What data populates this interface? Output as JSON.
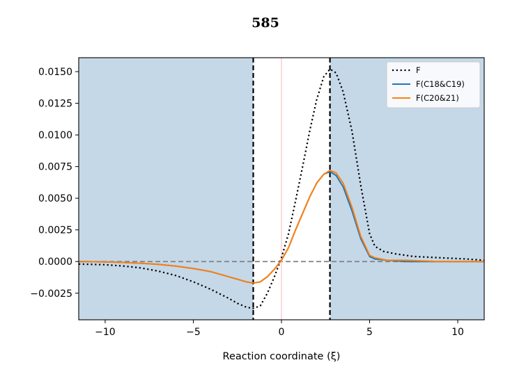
{
  "chart_data": {
    "type": "line",
    "title": "585",
    "xlabel": "Reaction coordinate (ξ)",
    "ylabel": "",
    "xlim": [
      -11.5,
      11.5
    ],
    "ylim": [
      -0.0046,
      0.0161
    ],
    "xticks": [
      -10,
      -5,
      0,
      5,
      10
    ],
    "xtick_labels": [
      "−10",
      "−5",
      "0",
      "5",
      "10"
    ],
    "yticks": [
      -0.0025,
      0.0,
      0.0025,
      0.005,
      0.0075,
      0.01,
      0.0125,
      0.015
    ],
    "ytick_labels": [
      "−0.0025",
      "0.0000",
      "0.0025",
      "0.0050",
      "0.0075",
      "0.0100",
      "0.0125",
      "0.0150"
    ],
    "grid": false,
    "legend_position": "top-right",
    "shaded_regions": [
      {
        "x0": -11.5,
        "x1": -1.6,
        "color": "#c5d8e8"
      },
      {
        "x0": 2.75,
        "x1": 11.5,
        "color": "#c5d8e8"
      }
    ],
    "vertical_lines": [
      {
        "x": -1.6,
        "style": "dashed",
        "color": "#000000"
      },
      {
        "x": 2.75,
        "style": "dashed",
        "color": "#000000"
      },
      {
        "x": 0,
        "style": "solid",
        "color": "#f7c6cc"
      }
    ],
    "horizontal_lines": [
      {
        "y": 0,
        "style": "dashed",
        "color": "#808080"
      }
    ],
    "series": [
      {
        "name": "F",
        "color": "#000000",
        "style": "dotted",
        "x": [
          -11.5,
          -10,
          -9,
          -8,
          -7,
          -6,
          -5,
          -4,
          -3,
          -2.5,
          -2,
          -1.6,
          -1.2,
          -0.8,
          -0.4,
          0,
          0.4,
          0.8,
          1.2,
          1.6,
          2.0,
          2.4,
          2.75,
          3.1,
          3.5,
          4.0,
          4.5,
          5.0,
          5.3,
          5.8,
          6.5,
          7.5,
          9,
          10.5,
          11.5
        ],
        "y": [
          -0.0002,
          -0.00025,
          -0.00035,
          -0.0005,
          -0.00075,
          -0.0011,
          -0.0016,
          -0.0022,
          -0.0029,
          -0.0033,
          -0.0036,
          -0.0037,
          -0.0035,
          -0.0025,
          -0.0012,
          0.0003,
          0.0022,
          0.0048,
          0.0075,
          0.0103,
          0.0128,
          0.0146,
          0.0152,
          0.0149,
          0.0134,
          0.0103,
          0.006,
          0.0022,
          0.0012,
          0.0008,
          0.0006,
          0.0004,
          0.0003,
          0.0002,
          0.0001
        ]
      },
      {
        "name": "F(C18&C19)",
        "color": "#1f77b4",
        "style": "solid",
        "x": [
          -11.5,
          -10,
          -9,
          -8,
          -7,
          -6,
          -5,
          -4,
          -3,
          -2.5,
          -2,
          -1.6,
          -1.2,
          -0.8,
          -0.4,
          0,
          0.4,
          0.8,
          1.2,
          1.6,
          2.0,
          2.4,
          2.75,
          3.1,
          3.5,
          4.0,
          4.5,
          5.0,
          5.3,
          6,
          7,
          9,
          11.5
        ],
        "y": [
          0.0,
          -3e-05,
          -7e-05,
          -0.00013,
          -0.00022,
          -0.00036,
          -0.00055,
          -0.0008,
          -0.0012,
          -0.0014,
          -0.0016,
          -0.0017,
          -0.0016,
          -0.0012,
          -0.0006,
          0.0001,
          0.0011,
          0.0025,
          0.0038,
          0.0051,
          0.0062,
          0.0069,
          0.0071,
          0.0068,
          0.0059,
          0.004,
          0.0018,
          0.0004,
          0.0002,
          0.0001,
          0.0,
          0.0,
          0.0
        ]
      },
      {
        "name": "F(C20&21)",
        "color": "#ff7f0e",
        "style": "solid",
        "x": [
          -11.5,
          -10,
          -9,
          -8,
          -7,
          -6,
          -5,
          -4,
          -3,
          -2.5,
          -2,
          -1.6,
          -1.2,
          -0.8,
          -0.4,
          0,
          0.4,
          0.8,
          1.2,
          1.6,
          2.0,
          2.4,
          2.75,
          3.1,
          3.5,
          4.0,
          4.5,
          5.0,
          5.3,
          6,
          7,
          9,
          11.5
        ],
        "y": [
          0.0,
          -3e-05,
          -7e-05,
          -0.00013,
          -0.00022,
          -0.00036,
          -0.00055,
          -0.0008,
          -0.0012,
          -0.0014,
          -0.0016,
          -0.0017,
          -0.0016,
          -0.0012,
          -0.0006,
          0.0001,
          0.0011,
          0.0025,
          0.0038,
          0.0051,
          0.0062,
          0.0069,
          0.0072,
          0.007,
          0.0062,
          0.0043,
          0.002,
          0.0005,
          0.0003,
          0.0001,
          0.0001,
          0.0,
          0.0
        ]
      }
    ]
  }
}
